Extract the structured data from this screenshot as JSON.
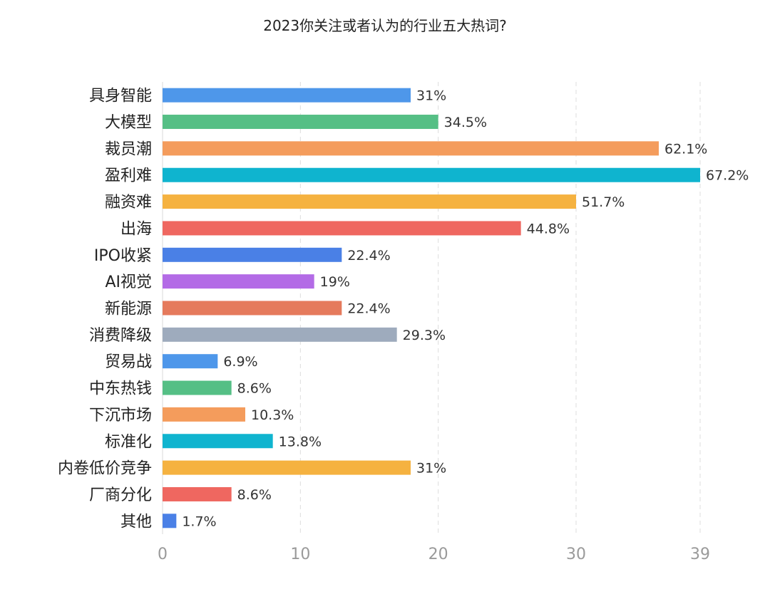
{
  "chart_data": {
    "type": "bar",
    "orientation": "horizontal",
    "title": "2023你关注或者认为的行业五大热词?",
    "xlabel": "",
    "ylabel": "",
    "xlim": [
      0,
      39
    ],
    "x_ticks": [
      0,
      10,
      20,
      30,
      39
    ],
    "grid": "dashed vertical",
    "categories": [
      "具身智能",
      "大模型",
      "裁员潮",
      "盈利难",
      "融资难",
      "出海",
      "IPO收紧",
      "AI视觉",
      "新能源",
      "消费降级",
      "贸易战",
      "中东热钱",
      "下沉市场",
      "标准化",
      "内卷低价竞争",
      "厂商分化",
      "其他"
    ],
    "values": [
      18,
      20,
      36,
      39,
      30,
      26,
      13,
      11,
      13,
      17,
      4,
      5,
      6,
      8,
      18,
      5,
      1
    ],
    "value_labels": [
      "31%",
      "34.5%",
      "62.1%",
      "67.2%",
      "51.7%",
      "44.8%",
      "22.4%",
      "19%",
      "22.4%",
      "29.3%",
      "6.9%",
      "8.6%",
      "10.3%",
      "13.8%",
      "31%",
      "8.6%",
      "1.7%"
    ],
    "colors": [
      "#4e97ea",
      "#55bf85",
      "#f49c5c",
      "#0fb4cf",
      "#f5b240",
      "#ef6760",
      "#4a80e6",
      "#b36be6",
      "#e57a5c",
      "#9eabbd",
      "#4e97ea",
      "#55bf85",
      "#f49c5c",
      "#0fb4cf",
      "#f5b240",
      "#ef6760",
      "#4a80e6"
    ]
  }
}
